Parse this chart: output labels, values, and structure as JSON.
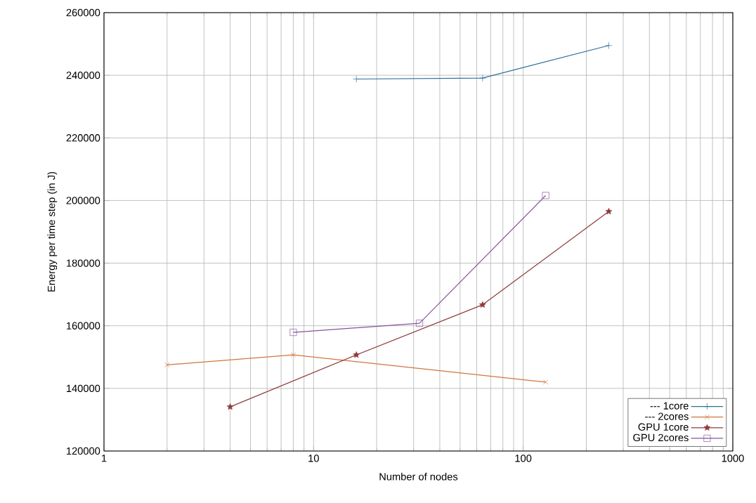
{
  "chart_data": {
    "type": "line",
    "xlabel": "Number of nodes",
    "ylabel": "Energy per time step (in J)",
    "log": "x",
    "grid": true,
    "legend": "bottom right",
    "line_style": "solid",
    "xlim": [
      1,
      1000
    ],
    "xticks": [
      1,
      10,
      100,
      1000
    ],
    "ylim": [
      120000,
      260000
    ],
    "yticks": [
      120000,
      140000,
      160000,
      180000,
      200000,
      220000,
      240000,
      260000
    ],
    "series": [
      {
        "name": "--- 1core",
        "color": "#2a6f9b",
        "marker": "plus",
        "x": [
          16,
          64,
          256
        ],
        "values": [
          238800,
          239100,
          249500
        ]
      },
      {
        "name": "--- 2cores",
        "color": "#d0743c",
        "marker": "cross",
        "x": [
          2,
          8,
          128
        ],
        "values": [
          147500,
          150700,
          142000
        ]
      },
      {
        "name": "GPU 1core",
        "color": "#8e3b3b",
        "marker": "star",
        "x": [
          4,
          16,
          64,
          256
        ],
        "values": [
          134100,
          150700,
          166700,
          196500
        ]
      },
      {
        "name": "GPU 2cores",
        "color": "#84539b",
        "marker": "square",
        "x": [
          8,
          32,
          128
        ],
        "values": [
          157900,
          160800,
          201600
        ]
      }
    ]
  }
}
